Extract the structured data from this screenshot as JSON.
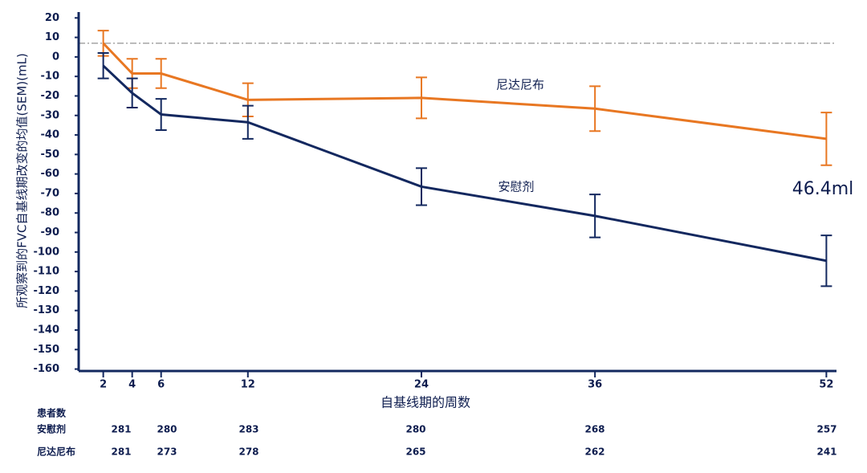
{
  "chart_data": {
    "type": "line",
    "x_label": "自基线期的周数",
    "y_label": "所观察到的FVC自基线期改变的均值(SEM)(mL)",
    "x": [
      2,
      4,
      6,
      12,
      24,
      36,
      52
    ],
    "xlim": [
      0.3,
      52.7
    ],
    "xticks": [
      2,
      4,
      6,
      12,
      24,
      36,
      52
    ],
    "ylim": [
      -161,
      23
    ],
    "yticks": [
      20,
      10,
      0,
      -10,
      -20,
      -30,
      -40,
      -50,
      -60,
      -70,
      -80,
      -90,
      -100,
      -110,
      -120,
      -130,
      -140,
      -150,
      -160
    ],
    "reference_line": 7,
    "series": [
      {
        "name": "尼达尼布",
        "color": "#e87722",
        "values": [
          7,
          -8.5,
          -8.5,
          -22,
          -21,
          -26.5,
          -42
        ],
        "errors": [
          6.5,
          7.5,
          7.5,
          8.5,
          10.5,
          11.5,
          13.5
        ]
      },
      {
        "name": "安慰剂",
        "color": "#13285f",
        "values": [
          -4.5,
          -18.5,
          -29.5,
          -33.5,
          -66.5,
          -81.5,
          -104.5
        ],
        "errors": [
          6.5,
          7.5,
          8,
          8.5,
          9.5,
          11,
          13
        ]
      }
    ],
    "annotation": "46.4ml",
    "table": {
      "header": "患者数",
      "rows": [
        {
          "label": "安慰剂",
          "values": [
            281,
            280,
            283,
            280,
            268,
            257
          ]
        },
        {
          "label": "尼达尼布",
          "values": [
            281,
            273,
            278,
            265,
            262,
            241
          ]
        }
      ]
    }
  }
}
